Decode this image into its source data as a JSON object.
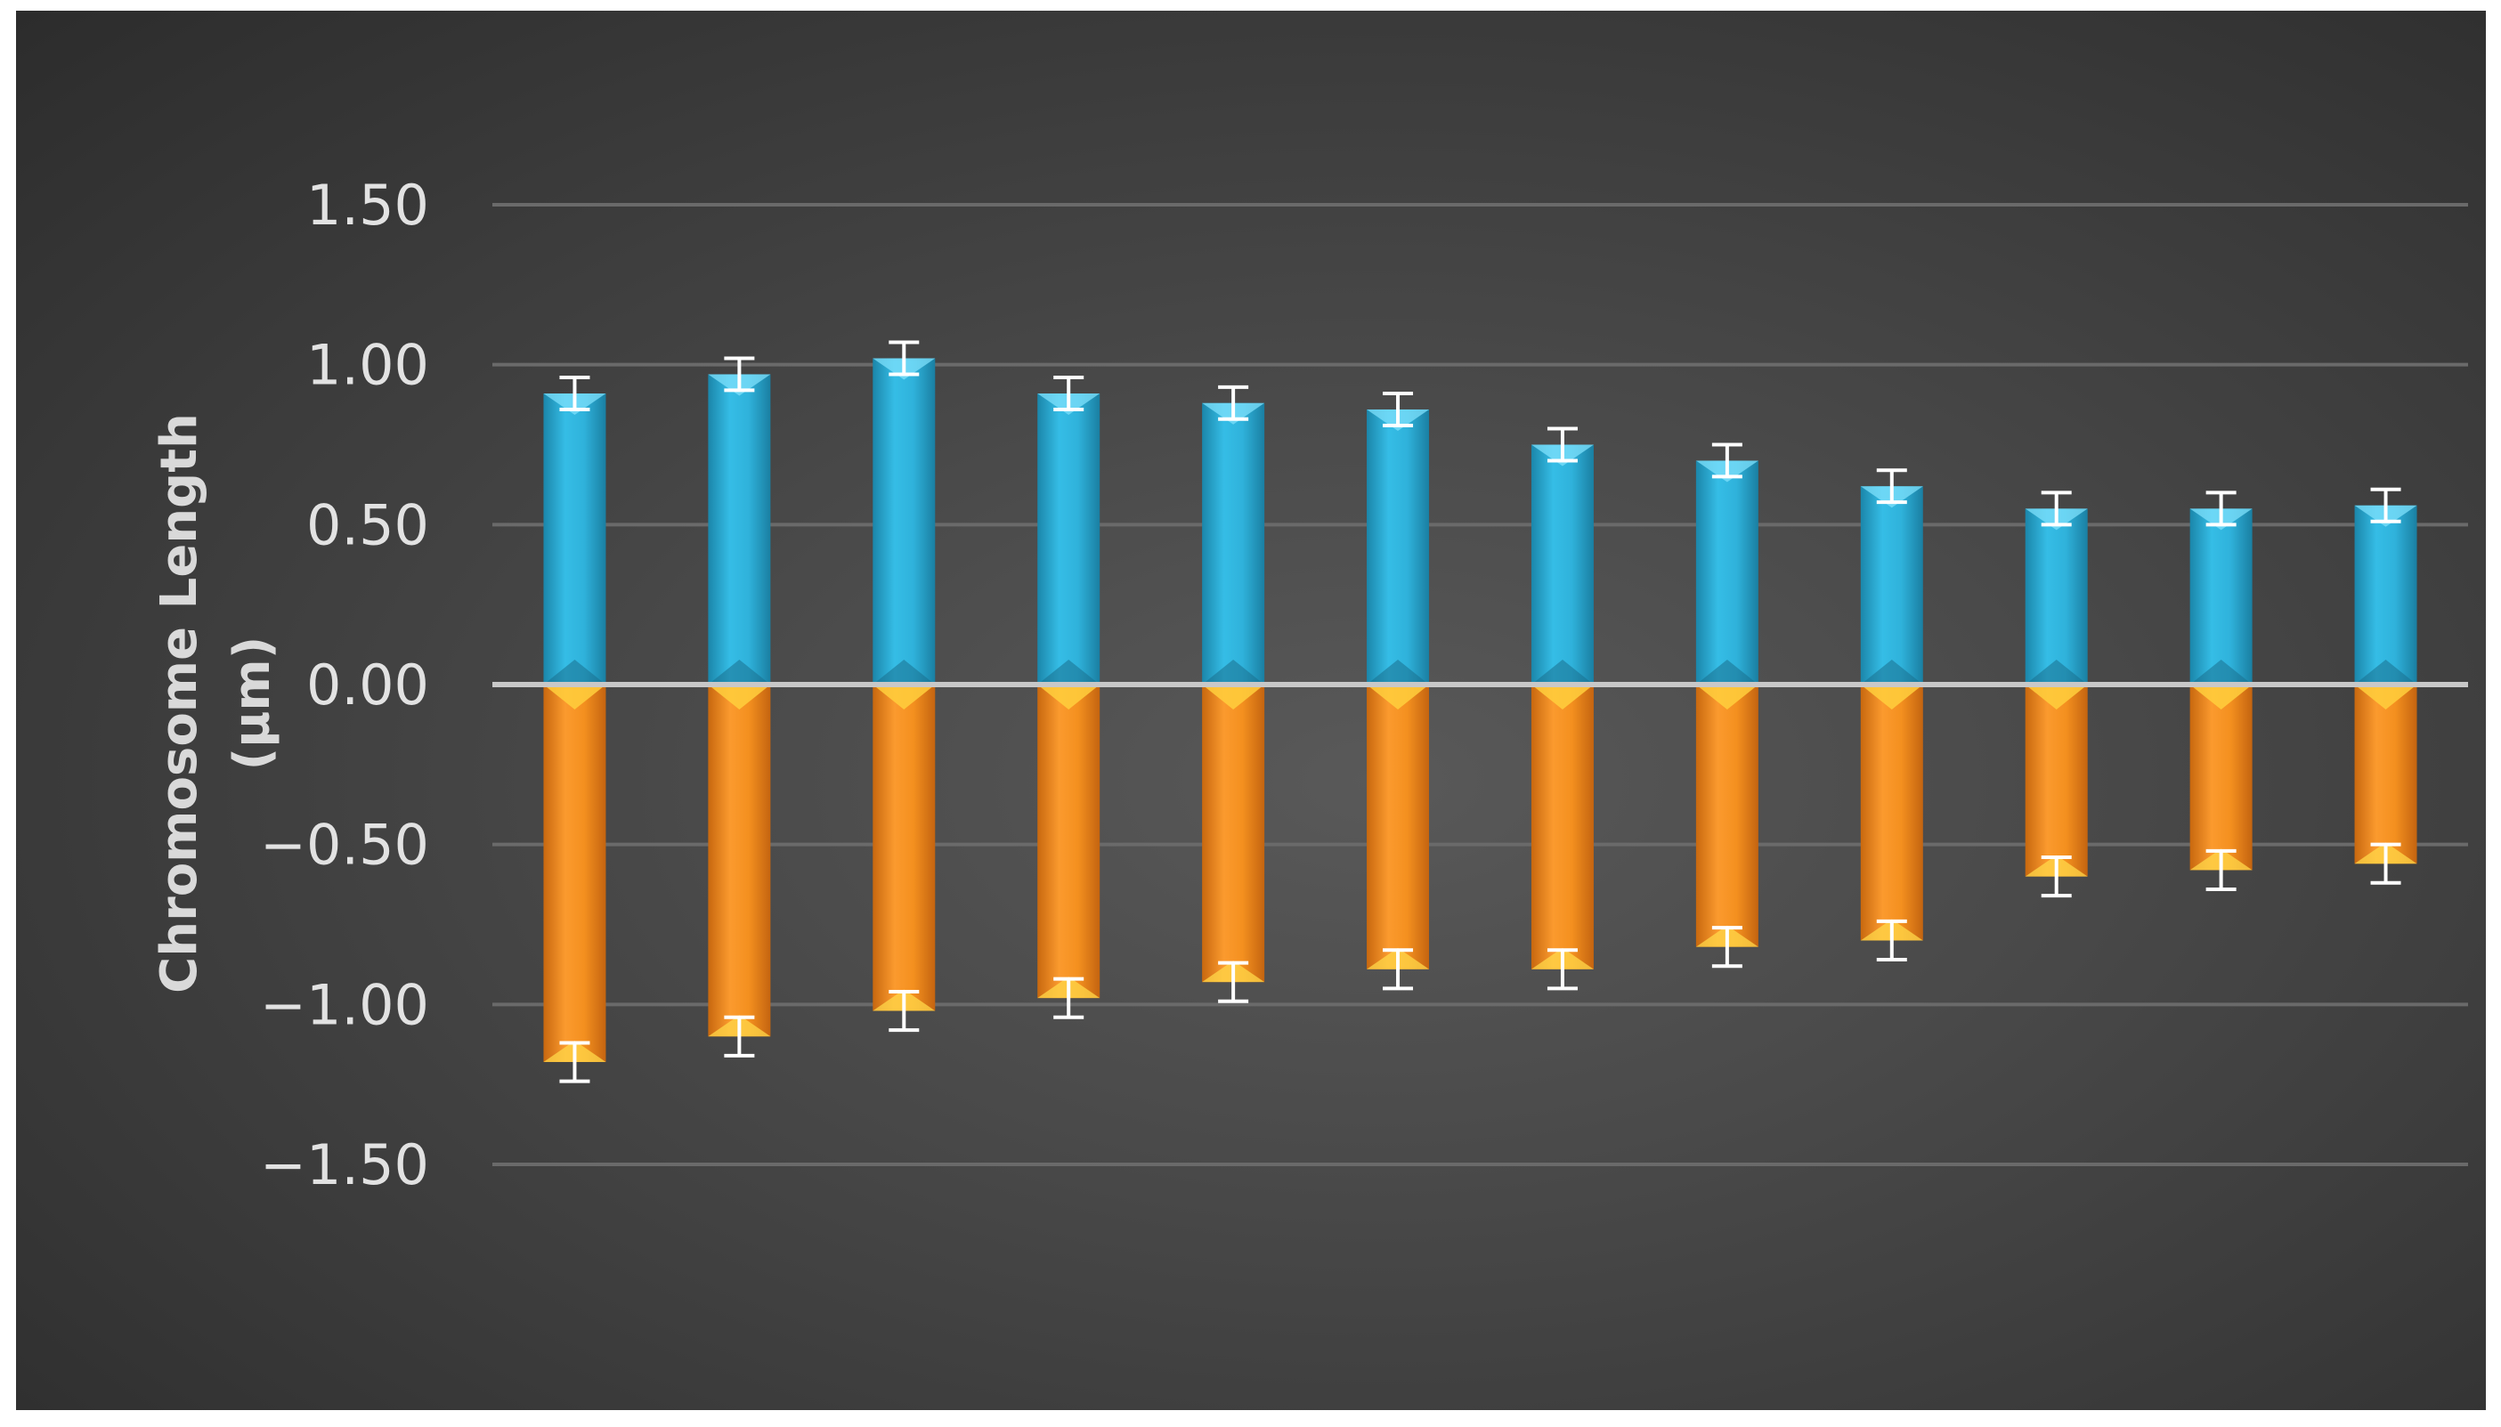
{
  "chart_data": {
    "type": "bar",
    "stacking": "diverging",
    "categories": [
      "1",
      "2",
      "3",
      "4",
      "5",
      "6",
      "7",
      "8",
      "9",
      "10",
      "11",
      "12"
    ],
    "category_labels_shown": false,
    "series": [
      {
        "values": [
          0.91,
          0.97,
          1.02,
          0.91,
          0.88,
          0.86,
          0.75,
          0.7,
          0.62,
          0.55,
          0.55,
          0.56
        ],
        "error": [
          0.05,
          0.05,
          0.05,
          0.05,
          0.05,
          0.05,
          0.05,
          0.05,
          0.05,
          0.05,
          0.05,
          0.05
        ],
        "color": "#2aaed6"
      },
      {
        "values": [
          -1.18,
          -1.1,
          -1.02,
          -0.98,
          -0.93,
          -0.89,
          -0.89,
          -0.82,
          -0.8,
          -0.6,
          -0.58,
          -0.56
        ],
        "error": [
          0.06,
          0.06,
          0.06,
          0.06,
          0.06,
          0.06,
          0.06,
          0.06,
          0.06,
          0.06,
          0.06,
          0.06
        ],
        "color": "#f28a1e"
      }
    ],
    "ylabel_line1": "Chromosome Length",
    "ylabel_line2": "(µm)",
    "ylim": [
      -1.5,
      1.5
    ],
    "yticks": [
      1.5,
      1.0,
      0.5,
      0.0,
      -0.5,
      -1.0,
      -1.5
    ],
    "ytick_labels": [
      "1.50",
      "1.00",
      "0.50",
      "0.00",
      "−0.50",
      "−1.00",
      "−1.50"
    ],
    "grid": true,
    "legend": "none",
    "background": "#3a3a3a",
    "error_bar_color": "#ffffff"
  }
}
